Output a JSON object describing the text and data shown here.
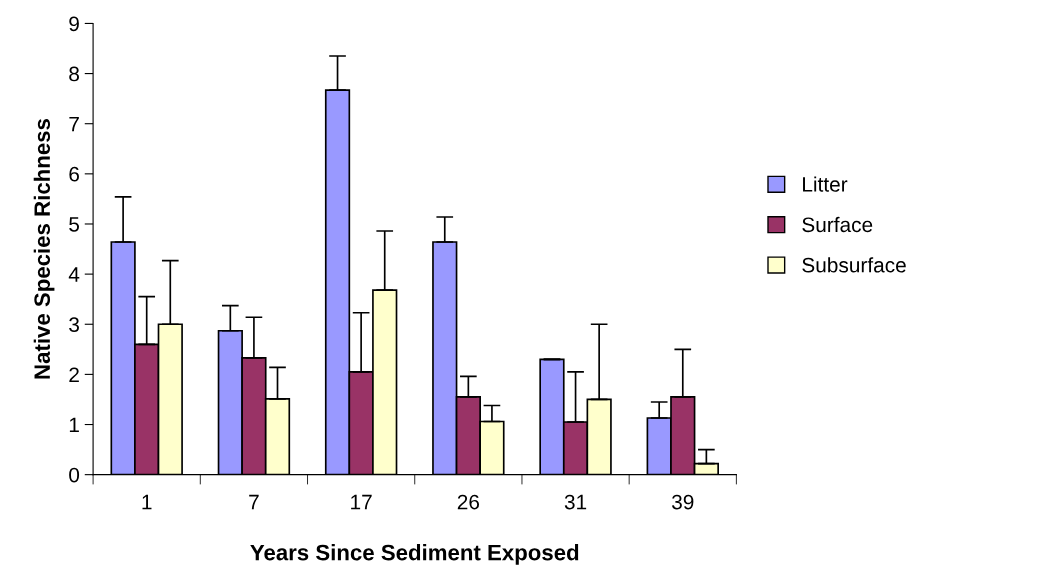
{
  "chart_data": {
    "type": "bar",
    "xlabel": "Years Since Sediment Exposed",
    "ylabel": "Native Species Richness",
    "categories": [
      "1",
      "7",
      "17",
      "26",
      "31",
      "39"
    ],
    "series": [
      {
        "name": "Litter",
        "color": "#9999ff",
        "values": [
          4.64,
          2.87,
          7.67,
          4.64,
          2.3,
          1.13
        ],
        "errors": [
          0.9,
          0.5,
          0.68,
          0.5,
          0,
          0.32
        ]
      },
      {
        "name": "Surface",
        "color": "#993366",
        "values": [
          2.6,
          2.33,
          2.05,
          1.55,
          1.05,
          1.55
        ],
        "errors": [
          0.95,
          0.81,
          1.18,
          0.41,
          1.0,
          0.95
        ]
      },
      {
        "name": "Subsurface",
        "color": "#ffffcc",
        "values": [
          3.0,
          1.51,
          3.68,
          1.06,
          1.5,
          0.22
        ],
        "errors": [
          1.27,
          0.63,
          1.18,
          0.32,
          1.5,
          0.28
        ]
      }
    ],
    "ylim": [
      0,
      9
    ],
    "yticks": [
      0,
      1,
      2,
      3,
      4,
      5,
      6,
      7,
      8,
      9
    ],
    "grid": false,
    "legend": "right"
  }
}
